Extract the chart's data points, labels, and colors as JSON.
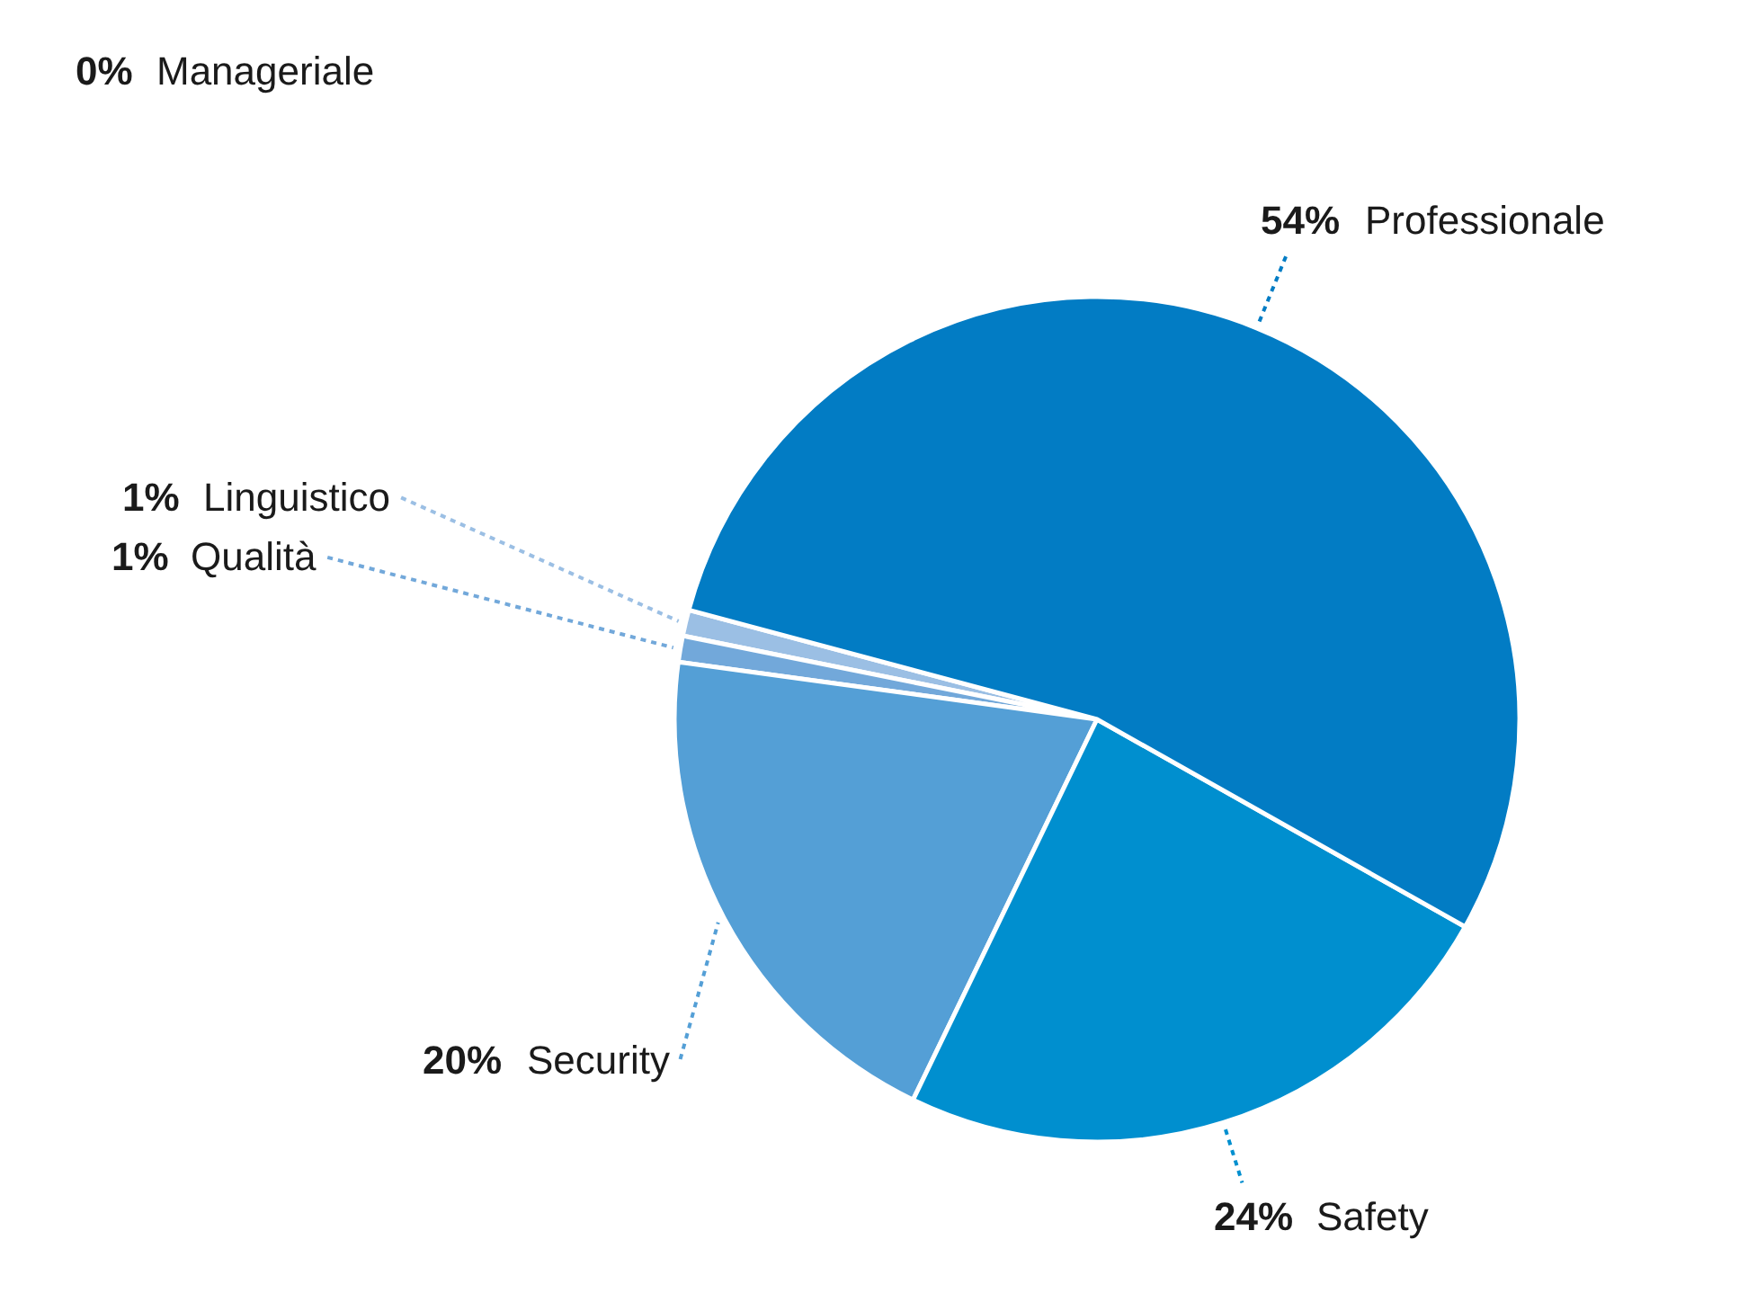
{
  "chart_data": {
    "type": "pie",
    "categories": [
      "Manageriale",
      "Linguistico",
      "Qualità",
      "Security",
      "Safety",
      "Professionale"
    ],
    "values": [
      0,
      1,
      1,
      20,
      24,
      54
    ],
    "value_labels": [
      "0%",
      "1%",
      "1%",
      "20%",
      "24%",
      "54%"
    ],
    "colors": [
      "#b7d2ee",
      "#9bbfe4",
      "#72a8da",
      "#549fd6",
      "#008fcf",
      "#027cc4"
    ],
    "legend": false
  }
}
